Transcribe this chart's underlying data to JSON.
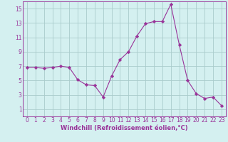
{
  "x": [
    0,
    1,
    2,
    3,
    4,
    5,
    6,
    7,
    8,
    9,
    10,
    11,
    12,
    13,
    14,
    15,
    16,
    17,
    18,
    19,
    20,
    21,
    22,
    23
  ],
  "y": [
    6.8,
    6.8,
    6.7,
    6.8,
    7.0,
    6.8,
    5.1,
    4.4,
    4.3,
    2.7,
    5.6,
    7.9,
    9.0,
    11.2,
    12.9,
    13.2,
    13.2,
    15.6,
    10.0,
    5.0,
    3.2,
    2.5,
    2.7,
    1.5
  ],
  "line_color": "#993399",
  "marker": "D",
  "marker_size": 2.2,
  "bg_color": "#d4f0f0",
  "grid_color": "#aacccc",
  "xlabel": "Windchill (Refroidissement éolien,°C)",
  "xlabel_fontsize": 6.0,
  "tick_fontsize": 5.5,
  "ylim": [
    0,
    16
  ],
  "yticks": [
    1,
    3,
    5,
    7,
    9,
    11,
    13,
    15
  ],
  "xlim": [
    -0.5,
    23.5
  ],
  "xticks": [
    0,
    1,
    2,
    3,
    4,
    5,
    6,
    7,
    8,
    9,
    10,
    11,
    12,
    13,
    14,
    15,
    16,
    17,
    18,
    19,
    20,
    21,
    22,
    23
  ]
}
